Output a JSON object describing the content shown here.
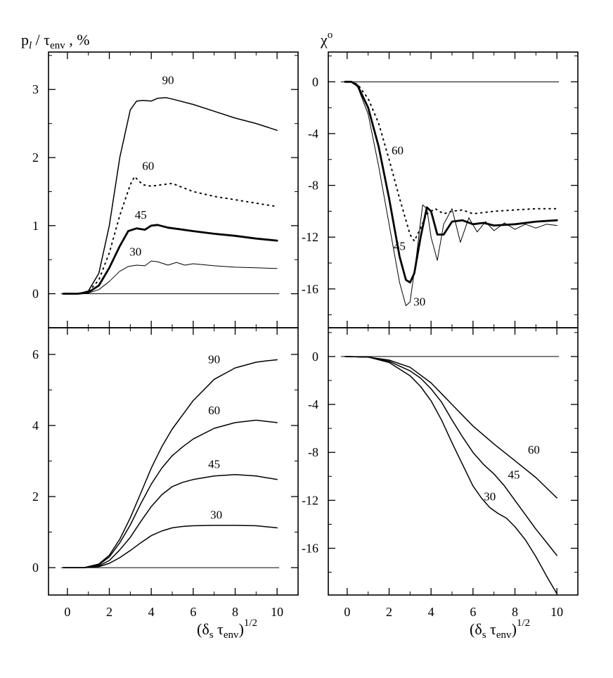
{
  "figure": {
    "left_ylabel": {
      "main": "p",
      "sub1": "l",
      "mid": " / τ",
      "sub2": "env",
      "tail": " , %"
    },
    "right_ylabel": {
      "main": "χ",
      "sup": "o"
    },
    "xlabel": {
      "open": "(δ",
      "sub1": "s",
      "mid": " τ",
      "sub2": "env",
      "close": ")",
      "sup": "1/2"
    },
    "x_ticks": [
      "0",
      "2",
      "4",
      "6",
      "8",
      "10"
    ]
  },
  "chart_data": [
    {
      "id": "top-left",
      "type": "line",
      "xlabel": "(δs τenv)^1/2",
      "ylabel": "pl / τenv , %",
      "xlim": [
        -0.9,
        11
      ],
      "ylim": [
        -0.5,
        3.55
      ],
      "xticks": [
        0,
        2,
        4,
        6,
        8,
        10
      ],
      "yticks": [
        0,
        1,
        2,
        3
      ],
      "ytick_labels": [
        "0",
        "1",
        "2",
        "3"
      ],
      "baseline": 0,
      "series": [
        {
          "name": "90",
          "style": "solid",
          "x": [
            -0.2,
            0.5,
            1.0,
            1.5,
            2.0,
            2.5,
            3.0,
            3.3,
            3.6,
            4.0,
            4.3,
            4.7,
            5.0,
            6.0,
            7.0,
            8.0,
            9.0,
            10.0
          ],
          "y": [
            0,
            0,
            0.04,
            0.3,
            1.0,
            2.0,
            2.7,
            2.83,
            2.84,
            2.83,
            2.87,
            2.88,
            2.86,
            2.78,
            2.68,
            2.58,
            2.5,
            2.4
          ],
          "label_at": [
            4.8,
            3.08
          ]
        },
        {
          "name": "60",
          "style": "dotted",
          "x": [
            -0.2,
            0.5,
            1.0,
            1.5,
            2.0,
            2.5,
            3.0,
            3.2,
            3.6,
            4.0,
            4.5,
            5.0,
            5.5,
            6.0,
            7.0,
            8.0,
            9.0,
            10.0
          ],
          "y": [
            0,
            0,
            0.03,
            0.2,
            0.6,
            1.15,
            1.6,
            1.72,
            1.6,
            1.58,
            1.6,
            1.62,
            1.56,
            1.5,
            1.43,
            1.38,
            1.33,
            1.28
          ],
          "label_at": [
            3.85,
            1.82
          ]
        },
        {
          "name": "45",
          "style": "bold",
          "x": [
            -0.2,
            0.5,
            1.0,
            1.5,
            2.0,
            2.5,
            2.9,
            3.3,
            3.7,
            4.0,
            4.3,
            4.8,
            5.3,
            6.0,
            7.0,
            8.0,
            9.0,
            10.0
          ],
          "y": [
            0,
            0,
            0.02,
            0.12,
            0.38,
            0.7,
            0.92,
            0.96,
            0.94,
            1.0,
            1.01,
            0.97,
            0.95,
            0.92,
            0.88,
            0.85,
            0.81,
            0.78
          ],
          "label_at": [
            3.5,
            1.1
          ]
        },
        {
          "name": "30",
          "style": "thin",
          "x": [
            -0.2,
            0.5,
            1.0,
            1.5,
            2.0,
            2.5,
            2.9,
            3.3,
            3.7,
            4.0,
            4.3,
            4.8,
            5.2,
            5.6,
            6.0,
            7.0,
            8.0,
            9.0,
            10.0
          ],
          "y": [
            0,
            0,
            0.01,
            0.06,
            0.18,
            0.33,
            0.4,
            0.42,
            0.41,
            0.48,
            0.47,
            0.42,
            0.46,
            0.42,
            0.44,
            0.41,
            0.39,
            0.38,
            0.37
          ],
          "label_at": [
            3.25,
            0.56
          ]
        }
      ]
    },
    {
      "id": "top-right",
      "type": "line",
      "ylabel": "χ°",
      "xlim": [
        -0.9,
        11
      ],
      "ylim": [
        -19,
        2.3
      ],
      "xticks": [
        0,
        2,
        4,
        6,
        8,
        10
      ],
      "yticks": [
        0,
        -4,
        -8,
        -12,
        -16
      ],
      "ytick_labels": [
        "0",
        "-4",
        "-8",
        "-12",
        "-16"
      ],
      "baseline": 0,
      "series": [
        {
          "name": "60",
          "style": "dotted",
          "x": [
            -0.1,
            0.2,
            0.5,
            1.0,
            1.5,
            2.0,
            2.5,
            3.0,
            3.2,
            3.5,
            3.8,
            4.2,
            4.6,
            5.0,
            5.5,
            6.0,
            7.0,
            8.0,
            9.0,
            10.0
          ],
          "y": [
            0,
            0,
            -0.2,
            -1.3,
            -3.2,
            -6.0,
            -9.0,
            -11.8,
            -12.3,
            -11.3,
            -10.2,
            -9.8,
            -10.2,
            -10.0,
            -9.9,
            -10.2,
            -10.0,
            -9.9,
            -9.8,
            -9.8
          ],
          "label_at": [
            2.4,
            -5.6
          ]
        },
        {
          "name": "45",
          "style": "bold",
          "x": [
            -0.1,
            0.2,
            0.5,
            1.0,
            1.5,
            2.0,
            2.5,
            2.8,
            3.0,
            3.2,
            3.5,
            3.8,
            4.0,
            4.3,
            4.6,
            5.0,
            5.5,
            6.0,
            6.5,
            7.0,
            8.0,
            9.0,
            10.0
          ],
          "y": [
            0,
            0,
            -0.3,
            -2.0,
            -5.0,
            -9.0,
            -13.5,
            -15.3,
            -15.5,
            -14.8,
            -12.0,
            -9.7,
            -10.0,
            -11.8,
            -11.8,
            -10.8,
            -10.7,
            -11.0,
            -10.9,
            -11.1,
            -11.0,
            -10.8,
            -10.7
          ],
          "label_at": [
            2.5,
            -13.0
          ]
        },
        {
          "name": "30",
          "style": "thin",
          "x": [
            -0.1,
            0.2,
            0.5,
            1.0,
            1.5,
            2.0,
            2.5,
            2.8,
            3.0,
            3.3,
            3.6,
            3.8,
            4.0,
            4.3,
            4.6,
            5.0,
            5.4,
            5.8,
            6.2,
            6.6,
            7.0,
            7.5,
            8.0,
            8.5,
            9.0,
            9.5,
            10.0
          ],
          "y": [
            0,
            0,
            -0.4,
            -2.5,
            -6.5,
            -11.0,
            -15.5,
            -17.3,
            -17.0,
            -13.5,
            -9.5,
            -9.8,
            -12.0,
            -13.8,
            -11.0,
            -9.8,
            -12.4,
            -10.5,
            -11.6,
            -10.8,
            -11.5,
            -10.9,
            -11.4,
            -11.0,
            -11.3,
            -11.0,
            -11.1
          ],
          "label_at": [
            3.45,
            -17.3
          ]
        }
      ]
    },
    {
      "id": "bottom-left",
      "type": "line",
      "xlabel": "(δs τenv)^1/2",
      "xlim": [
        -0.9,
        11
      ],
      "ylim": [
        -0.77,
        6.75
      ],
      "xticks": [
        0,
        2,
        4,
        6,
        8,
        10
      ],
      "yticks": [
        0,
        2,
        4,
        6
      ],
      "ytick_labels": [
        "0",
        "2",
        "4",
        "6"
      ],
      "baseline": 0,
      "series": [
        {
          "name": "90",
          "style": "solid",
          "x": [
            -0.2,
            0.8,
            1.5,
            2.0,
            2.5,
            3.0,
            3.5,
            4.0,
            4.5,
            5.0,
            5.5,
            6.0,
            7.0,
            8.0,
            9.0,
            9.5,
            10.0
          ],
          "y": [
            0,
            0,
            0.1,
            0.35,
            0.8,
            1.4,
            2.1,
            2.8,
            3.4,
            3.9,
            4.3,
            4.7,
            5.3,
            5.62,
            5.78,
            5.82,
            5.85
          ],
          "label_at": [
            7.0,
            5.75
          ]
        },
        {
          "name": "60",
          "style": "solid",
          "x": [
            -0.2,
            0.8,
            1.5,
            2.0,
            2.5,
            3.0,
            3.5,
            4.0,
            4.5,
            5.0,
            5.5,
            6.0,
            7.0,
            8.0,
            9.0,
            10.0
          ],
          "y": [
            0,
            0,
            0.08,
            0.3,
            0.7,
            1.2,
            1.8,
            2.35,
            2.8,
            3.15,
            3.4,
            3.62,
            3.92,
            4.08,
            4.15,
            4.08
          ],
          "label_at": [
            7.0,
            4.32
          ]
        },
        {
          "name": "45",
          "style": "solid",
          "x": [
            -0.2,
            0.8,
            1.5,
            2.0,
            2.5,
            3.0,
            3.5,
            4.0,
            4.5,
            5.0,
            5.5,
            6.0,
            7.0,
            8.0,
            9.0,
            10.0
          ],
          "y": [
            0,
            0,
            0.05,
            0.2,
            0.5,
            0.85,
            1.3,
            1.72,
            2.05,
            2.28,
            2.4,
            2.48,
            2.58,
            2.62,
            2.58,
            2.48
          ],
          "label_at": [
            7.0,
            2.8
          ]
        },
        {
          "name": "30",
          "style": "solid",
          "x": [
            -0.2,
            0.8,
            1.5,
            2.0,
            2.5,
            3.0,
            3.5,
            4.0,
            4.5,
            5.0,
            5.5,
            6.0,
            7.0,
            8.0,
            9.0,
            10.0
          ],
          "y": [
            0,
            0,
            0.03,
            0.12,
            0.28,
            0.48,
            0.7,
            0.9,
            1.03,
            1.12,
            1.16,
            1.18,
            1.19,
            1.19,
            1.18,
            1.12
          ],
          "label_at": [
            7.1,
            1.38
          ]
        }
      ]
    },
    {
      "id": "bottom-right",
      "type": "line",
      "xlabel": "(δs τenv)^1/2",
      "xlim": [
        -0.9,
        11
      ],
      "ylim": [
        -19.9,
        2.4
      ],
      "xticks": [
        0,
        2,
        4,
        6,
        8,
        10
      ],
      "yticks": [
        0,
        -4,
        -8,
        -12,
        -16
      ],
      "ytick_labels": [
        "0",
        "-4",
        "-8",
        "-12",
        "-16"
      ],
      "baseline": 0,
      "series": [
        {
          "name": "60",
          "style": "solid",
          "x": [
            -0.1,
            1.0,
            2.0,
            3.0,
            4.0,
            5.0,
            6.0,
            7.0,
            8.0,
            9.0,
            10.0
          ],
          "y": [
            0,
            -0.05,
            -0.3,
            -0.9,
            -2.2,
            -4.0,
            -5.8,
            -7.3,
            -8.7,
            -10.1,
            -11.8
          ],
          "label_at": [
            8.9,
            -8.1
          ]
        },
        {
          "name": "45",
          "style": "solid",
          "x": [
            -0.1,
            1.0,
            2.0,
            3.0,
            3.5,
            4.0,
            4.5,
            5.0,
            5.5,
            6.0,
            6.5,
            7.0,
            7.5,
            8.0,
            8.5,
            9.0,
            9.5,
            10.0
          ],
          "y": [
            0,
            -0.05,
            -0.4,
            -1.2,
            -1.8,
            -2.7,
            -3.8,
            -5.3,
            -6.7,
            -8.0,
            -9.0,
            -9.8,
            -10.8,
            -12.0,
            -13.2,
            -14.4,
            -15.5,
            -16.6
          ],
          "label_at": [
            7.95,
            -10.2
          ]
        },
        {
          "name": "30",
          "style": "solid",
          "x": [
            -0.1,
            1.0,
            2.0,
            3.0,
            3.5,
            4.0,
            4.5,
            5.0,
            5.5,
            6.0,
            6.4,
            6.8,
            7.2,
            7.6,
            8.0,
            8.5,
            9.0,
            9.5,
            10.0
          ],
          "y": [
            0,
            -0.05,
            -0.5,
            -1.6,
            -2.5,
            -3.7,
            -5.3,
            -7.2,
            -9.0,
            -10.8,
            -11.8,
            -12.6,
            -13.1,
            -13.5,
            -14.2,
            -15.3,
            -16.7,
            -18.3,
            -19.8
          ],
          "label_at": [
            6.8,
            -12.0
          ]
        }
      ]
    }
  ]
}
